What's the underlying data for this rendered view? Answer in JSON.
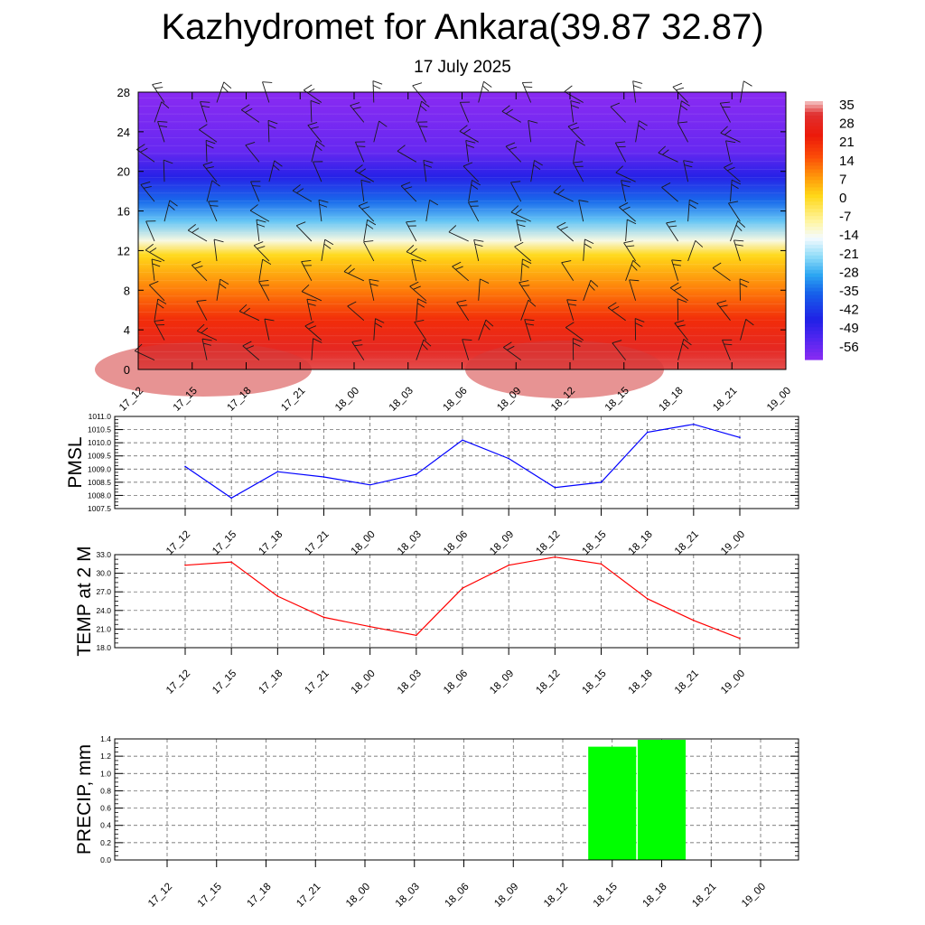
{
  "title": "Kazhydromet for Ankara(39.87 32.87)",
  "subtitle": "17 July 2025",
  "time_labels": [
    "17_12",
    "17_15",
    "17_18",
    "17_21",
    "18_00",
    "18_03",
    "18_06",
    "18_09",
    "18_12",
    "18_15",
    "18_18",
    "18_21",
    "19_00"
  ],
  "chart_data": [
    {
      "type": "heatmap",
      "name": "temperature-cross-section",
      "x": [
        "17_12",
        "17_15",
        "17_18",
        "17_21",
        "18_00",
        "18_03",
        "18_06",
        "18_09",
        "18_12",
        "18_15",
        "18_18",
        "18_21",
        "19_00"
      ],
      "y_ticks": [
        0,
        4,
        8,
        12,
        16,
        20,
        24,
        28
      ],
      "ylim": [
        0,
        28
      ],
      "colorbar_labels": [
        35,
        28,
        21,
        14,
        7,
        0,
        -7,
        -14,
        -21,
        -28,
        -35,
        -42,
        -49,
        -56
      ],
      "color_stops": [
        {
          "value": 38,
          "color": "#f5c8c8"
        },
        {
          "value": 33,
          "color": "#e03030"
        },
        {
          "value": 25,
          "color": "#ec1a0a"
        },
        {
          "value": 17,
          "color": "#fb4b08"
        },
        {
          "value": 9,
          "color": "#ff9a0a"
        },
        {
          "value": 2,
          "color": "#ffd818"
        },
        {
          "value": -8,
          "color": "#fff6a8"
        },
        {
          "value": -14,
          "color": "#f4fbff"
        },
        {
          "value": -21,
          "color": "#8fdcf8"
        },
        {
          "value": -28,
          "color": "#2ca6f2"
        },
        {
          "value": -35,
          "color": "#1660ea"
        },
        {
          "value": -45,
          "color": "#2020e6"
        },
        {
          "value": -52,
          "color": "#5026f0"
        },
        {
          "value": -60,
          "color": "#8a2bf2"
        }
      ],
      "profile": [
        {
          "level": 0,
          "value": 34
        },
        {
          "level": 2,
          "value": 30
        },
        {
          "level": 5,
          "value": 22
        },
        {
          "level": 8,
          "value": 12
        },
        {
          "level": 11.5,
          "value": 2
        },
        {
          "level": 13,
          "value": -12
        },
        {
          "level": 15,
          "value": -24
        },
        {
          "level": 17,
          "value": -34
        },
        {
          "level": 19.5,
          "value": -46
        },
        {
          "level": 22,
          "value": -55
        },
        {
          "level": 28,
          "value": -60
        }
      ],
      "wind_barbs": true
    },
    {
      "type": "line",
      "name": "pmsl",
      "ylabel": "PMSL",
      "x": [
        "17_12",
        "17_15",
        "17_18",
        "17_21",
        "18_00",
        "18_03",
        "18_06",
        "18_09",
        "18_12",
        "18_15",
        "18_18",
        "18_21",
        "19_00"
      ],
      "values": [
        1009.1,
        1007.9,
        1008.9,
        1008.7,
        1008.4,
        1008.8,
        1010.1,
        1009.4,
        1008.3,
        1008.5,
        1010.4,
        1010.7,
        1010.2
      ],
      "ylim": [
        1007.5,
        1011.0
      ],
      "yticks": [
        "1011.0",
        "1010.5",
        "1010.0",
        "1009.5",
        "1009.0",
        "1008.5",
        "1008.0",
        "1007.5"
      ],
      "color": "#0000ff",
      "grid": true
    },
    {
      "type": "line",
      "name": "temp-2m",
      "ylabel": "TEMP at 2 M",
      "x": [
        "17_12",
        "17_15",
        "17_18",
        "17_21",
        "18_00",
        "18_03",
        "18_06",
        "18_09",
        "18_12",
        "18_15",
        "18_18",
        "18_21",
        "19_00"
      ],
      "values": [
        31.3,
        31.8,
        26.3,
        22.9,
        21.4,
        20.0,
        27.6,
        31.3,
        32.6,
        31.5,
        25.9,
        22.4,
        19.5
      ],
      "ylim": [
        18.0,
        33.0
      ],
      "yticks": [
        "33.0",
        "30.0",
        "27.0",
        "24.0",
        "21.0",
        "18.0"
      ],
      "color": "#ff0000",
      "grid": true
    },
    {
      "type": "bar",
      "name": "precip",
      "ylabel": "PRECIP, mm",
      "x": [
        "17_12",
        "17_15",
        "17_18",
        "17_21",
        "18_00",
        "18_03",
        "18_06",
        "18_09",
        "18_12",
        "18_15",
        "18_18",
        "18_21",
        "19_00"
      ],
      "values": [
        0,
        0,
        0,
        0,
        0,
        0,
        0,
        0,
        0,
        1.31,
        1.39,
        0,
        0
      ],
      "ylim": [
        0.0,
        1.4
      ],
      "yticks": [
        "1.4",
        "1.2",
        "1.0",
        "0.8",
        "0.6",
        "0.4",
        "0.2",
        "0.0"
      ],
      "color": "#00ff00",
      "grid": true
    }
  ]
}
